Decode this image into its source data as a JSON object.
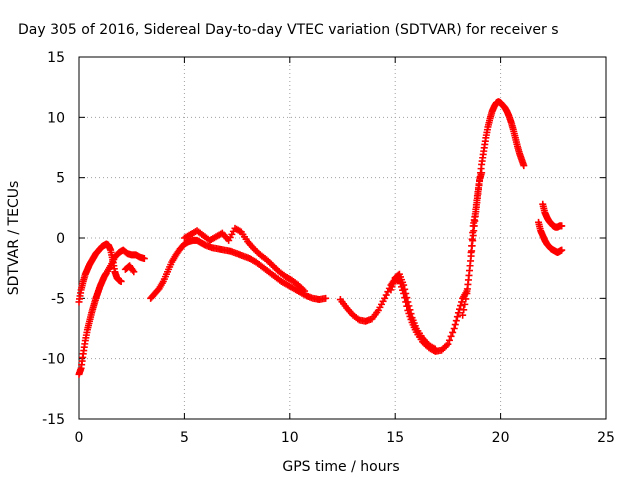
{
  "chart_data": {
    "type": "scatter",
    "title": "Day 305 of 2016, Sidereal Day-to-day VTEC variation (SDTVAR) for receiver s",
    "xlabel": "GPS time / hours",
    "ylabel": "SDTVAR / TECUs",
    "xlim": [
      0,
      25
    ],
    "ylim": [
      -15,
      15
    ],
    "xticks": [
      "0",
      "5",
      "10",
      "15",
      "20",
      "25"
    ],
    "yticks": [
      "-15",
      "-10",
      "-5",
      "0",
      "5",
      "10",
      "15"
    ],
    "grid": true,
    "marker": "+",
    "marker_color": "#ff0000",
    "series": [
      {
        "name": "",
        "x": [
          0.0,
          0.1,
          0.2,
          0.3,
          0.4,
          0.5,
          0.6,
          0.7,
          0.8,
          0.9,
          1.0,
          1.1,
          1.2,
          1.3,
          1.4,
          1.5,
          1.6,
          1.7,
          1.8,
          1.9,
          2.0
        ],
        "y": [
          -5.3,
          -4.3,
          -3.6,
          -3.0,
          -2.6,
          -2.2,
          -1.9,
          -1.6,
          -1.3,
          -1.1,
          -0.9,
          -0.7,
          -0.6,
          -0.5,
          -0.6,
          -1.0,
          -1.8,
          -2.8,
          -3.3,
          -3.5,
          -3.6
        ]
      },
      {
        "name": "",
        "x": [
          0.0,
          0.1,
          0.2,
          0.3,
          0.4,
          0.5,
          0.6,
          0.7,
          0.8,
          0.9,
          1.0,
          1.1,
          1.2,
          1.3,
          1.5,
          1.7,
          1.9,
          2.1,
          2.3,
          2.5,
          2.7,
          2.9,
          3.1
        ],
        "y": [
          -11.3,
          -10.8,
          -9.6,
          -8.5,
          -7.6,
          -6.9,
          -6.2,
          -5.6,
          -5.0,
          -4.5,
          -4.0,
          -3.6,
          -3.2,
          -2.9,
          -2.3,
          -1.6,
          -1.2,
          -1.0,
          -1.3,
          -1.4,
          -1.4,
          -1.6,
          -1.7
        ]
      },
      {
        "name": "",
        "x": [
          2.2,
          2.4,
          2.6
        ],
        "y": [
          -2.6,
          -2.3,
          -2.8
        ]
      },
      {
        "name": "",
        "x": [
          3.4,
          3.6,
          3.8,
          4.0,
          4.2,
          4.4,
          4.6,
          4.8,
          5.0,
          5.2,
          5.4,
          5.6,
          5.8,
          6.0,
          6.3,
          6.6,
          6.9,
          7.2,
          7.5,
          7.8,
          8.1,
          8.4,
          8.7,
          9.0,
          9.3,
          9.6,
          9.9,
          10.2,
          10.5,
          10.8,
          11.1,
          11.4,
          11.7
        ],
        "y": [
          -5.0,
          -4.6,
          -4.2,
          -3.6,
          -2.8,
          -2.0,
          -1.4,
          -0.9,
          -0.5,
          -0.3,
          -0.2,
          -0.2,
          -0.4,
          -0.6,
          -0.8,
          -0.9,
          -1.0,
          -1.1,
          -1.3,
          -1.5,
          -1.7,
          -2.0,
          -2.4,
          -2.8,
          -3.2,
          -3.6,
          -3.9,
          -4.2,
          -4.5,
          -4.8,
          -5.0,
          -5.1,
          -5.0
        ]
      },
      {
        "name": "",
        "x": [
          5.0,
          5.3,
          5.6,
          5.9,
          6.2,
          6.5,
          6.8,
          7.1,
          7.4,
          7.7,
          8.0,
          8.3,
          8.6,
          8.9,
          9.2,
          9.5,
          9.8,
          10.1,
          10.4,
          10.7
        ],
        "y": [
          0.0,
          0.3,
          0.6,
          0.2,
          -0.2,
          0.1,
          0.4,
          -0.2,
          0.8,
          0.5,
          -0.3,
          -0.9,
          -1.4,
          -1.8,
          -2.3,
          -2.8,
          -3.2,
          -3.5,
          -3.9,
          -4.4
        ]
      },
      {
        "name": "",
        "x": [
          12.4,
          12.7,
          13.0,
          13.3,
          13.6,
          13.9,
          14.2,
          14.5,
          14.8,
          15.0,
          15.2,
          15.4,
          15.6,
          15.8,
          16.0,
          16.3,
          16.6,
          16.9,
          17.2,
          17.5,
          17.8,
          18.0,
          18.2,
          18.4
        ],
        "y": [
          -5.1,
          -5.8,
          -6.4,
          -6.8,
          -6.9,
          -6.7,
          -6.0,
          -5.0,
          -3.9,
          -3.4,
          -3.5,
          -4.6,
          -6.0,
          -7.0,
          -7.8,
          -8.6,
          -9.1,
          -9.4,
          -9.3,
          -8.8,
          -7.5,
          -6.2,
          -5.0,
          -4.4
        ]
      },
      {
        "name": "",
        "x": [
          14.8,
          15.0,
          15.2,
          15.4,
          15.6,
          15.8,
          16.0,
          16.3,
          16.6,
          16.9
        ],
        "y": [
          -4.3,
          -3.3,
          -3.0,
          -3.9,
          -5.3,
          -6.6,
          -7.5,
          -8.3,
          -8.9,
          -9.2
        ]
      },
      {
        "name": "",
        "x": [
          18.2,
          18.4,
          18.5,
          18.6,
          18.7,
          18.8,
          18.9,
          19.0,
          19.1,
          19.2,
          19.3,
          19.4,
          19.5,
          19.6,
          19.7,
          19.8,
          19.9,
          20.0,
          20.1,
          20.2,
          20.3,
          20.4,
          20.5,
          20.6,
          20.7,
          20.8,
          20.9,
          21.0,
          21.1
        ],
        "y": [
          -6.4,
          -4.6,
          -3.1,
          -1.5,
          0.2,
          1.8,
          3.3,
          4.7,
          6.1,
          7.2,
          8.3,
          9.2,
          9.9,
          10.5,
          10.9,
          11.2,
          11.3,
          11.2,
          11.0,
          10.8,
          10.5,
          10.1,
          9.6,
          9.0,
          8.3,
          7.6,
          7.0,
          6.5,
          6.0
        ]
      },
      {
        "name": "",
        "x": [
          18.6,
          18.7,
          18.8,
          18.9,
          19.0,
          19.1
        ],
        "y": [
          -1.2,
          1.0,
          2.0,
          3.5,
          4.8,
          5.4
        ]
      },
      {
        "name": "",
        "x": [
          21.8,
          21.9,
          22.0,
          22.1,
          22.2,
          22.3,
          22.4,
          22.5,
          22.6,
          22.7,
          22.8,
          22.9
        ],
        "y": [
          1.3,
          0.6,
          0.2,
          -0.2,
          -0.5,
          -0.7,
          -0.9,
          -1.0,
          -1.1,
          -1.2,
          -1.1,
          -1.0
        ]
      },
      {
        "name": "",
        "x": [
          22.0,
          22.1,
          22.2,
          22.3,
          22.4,
          22.5,
          22.6,
          22.7,
          22.8,
          22.9
        ],
        "y": [
          2.8,
          2.1,
          1.7,
          1.4,
          1.2,
          1.0,
          0.9,
          0.9,
          1.0,
          1.0
        ]
      }
    ]
  }
}
